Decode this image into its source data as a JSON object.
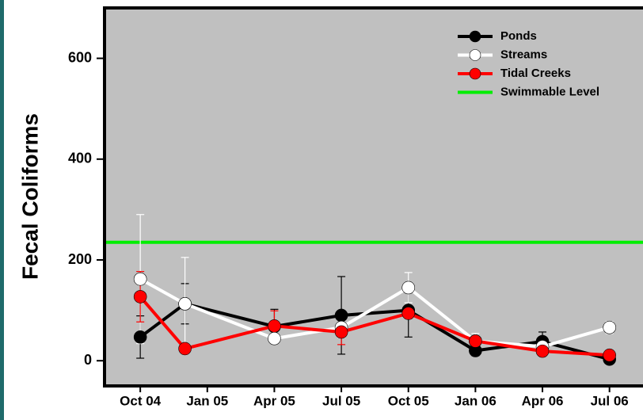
{
  "chart_data": {
    "type": "line",
    "y_label": "Fecal Coliforms",
    "x": [
      0,
      2,
      6,
      9,
      12,
      15,
      18,
      21
    ],
    "xlim": [
      -1.6,
      22.5
    ],
    "xticks": [
      {
        "value": 0,
        "label": "Oct 04"
      },
      {
        "value": 3,
        "label": "Jan 05"
      },
      {
        "value": 6,
        "label": "Apr 05"
      },
      {
        "value": 9,
        "label": "Jul 05"
      },
      {
        "value": 12,
        "label": "Oct 05"
      },
      {
        "value": 15,
        "label": "Jan 06"
      },
      {
        "value": 18,
        "label": "Apr 06"
      },
      {
        "value": 21,
        "label": "Jul 06"
      }
    ],
    "ylim": [
      -50,
      700
    ],
    "yticks": [
      0,
      200,
      400,
      600
    ],
    "series": [
      {
        "name": "Ponds",
        "color": "#000000",
        "values": [
          47,
          113,
          68,
          90,
          100,
          20,
          38,
          3
        ],
        "errors": [
          42,
          40,
          34,
          77,
          53,
          10,
          19,
          5
        ]
      },
      {
        "name": "Streams",
        "color": "#ffffff",
        "values": [
          162,
          113,
          44,
          66,
          145,
          39,
          28,
          66
        ],
        "errors": [
          128,
          92,
          10,
          20,
          30,
          15,
          8,
          12
        ]
      },
      {
        "name": "Tidal Creeks",
        "color": "#ff0000",
        "values": [
          127,
          24,
          69,
          57,
          94,
          39,
          19,
          11
        ],
        "errors": [
          50,
          5,
          30,
          25,
          10,
          10,
          8,
          5
        ]
      }
    ],
    "reference_lines": [
      {
        "name": "Swimmable Level",
        "value": 235,
        "color": "#00ee00"
      }
    ],
    "plot_background": "#c0c0c0"
  }
}
